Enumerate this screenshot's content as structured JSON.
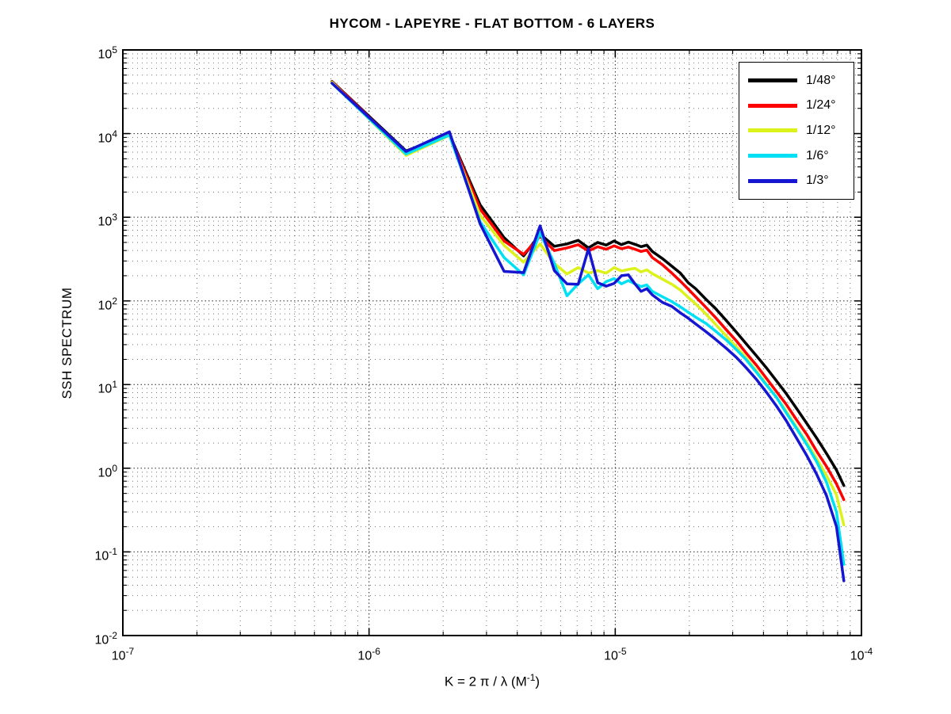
{
  "title": "HYCOM - LAPEYRE - FLAT BOTTOM - 6 LAYERS",
  "chart_data": {
    "type": "line",
    "title": "HYCOM - LAPEYRE - FLAT BOTTOM - 6 LAYERS",
    "xlabel": "K = 2 π / λ  (M⁻¹)",
    "xlabel_parts": {
      "main": "K = 2 π / λ   (M",
      "sup": "-1",
      "close": ")"
    },
    "ylabel": "SSH SPECTRUM",
    "x_scale": "log",
    "y_scale": "log",
    "xlim": [
      1e-07,
      0.0001
    ],
    "ylim": [
      0.01,
      100000
    ],
    "x_tick_exponents": [
      -7,
      -6,
      -5,
      -4
    ],
    "y_tick_exponents": [
      5,
      4,
      3,
      2,
      1,
      0,
      -1,
      -2
    ],
    "grid": "on",
    "legend_position": "top-right",
    "tick_label_base": "10",
    "x": [
      7.07e-07,
      1.414e-06,
      2.121e-06,
      2.828e-06,
      3.536e-06,
      4.243e-06,
      4.95e-06,
      5.657e-06,
      6.364e-06,
      7.07e-06,
      7.78e-06,
      8.49e-06,
      9.19e-06,
      9.9e-06,
      1.06e-05,
      1.131e-05,
      1.202e-05,
      1.273e-05,
      1.344e-05,
      1.414e-05,
      1.556e-05,
      1.697e-05,
      1.838e-05,
      1.98e-05,
      2.121e-05,
      2.333e-05,
      2.546e-05,
      2.828e-05,
      3.111e-05,
      3.394e-05,
      3.748e-05,
      4.101e-05,
      4.525e-05,
      4.95e-05,
      5.445e-05,
      6.01e-05,
      6.576e-05,
      7.212e-05,
      7.919e-05,
      8.484e-05
    ],
    "series": [
      {
        "name": "1/48°",
        "color": "#000000",
        "values": [
          42000,
          6200,
          9800,
          1400,
          570,
          345,
          630,
          450,
          480,
          530,
          430,
          500,
          465,
          520,
          470,
          505,
          475,
          445,
          465,
          390,
          320,
          260,
          215,
          165,
          140,
          105,
          82,
          58,
          42,
          31,
          22,
          16,
          11,
          7.8,
          5.2,
          3.4,
          2.3,
          1.5,
          0.95,
          0.62
        ]
      },
      {
        "name": "1/24°",
        "color": "#ff0000",
        "values": [
          41500,
          6000,
          9700,
          1250,
          520,
          360,
          590,
          400,
          430,
          470,
          395,
          445,
          415,
          455,
          420,
          440,
          415,
          390,
          405,
          330,
          270,
          215,
          172,
          138,
          112,
          84,
          64,
          45,
          33,
          24,
          17,
          12,
          8.2,
          5.8,
          3.8,
          2.5,
          1.6,
          1.05,
          0.65,
          0.42
        ]
      },
      {
        "name": "1/12°",
        "color": "#ddf21b",
        "values": [
          41000,
          5500,
          9500,
          1050,
          460,
          290,
          480,
          280,
          210,
          250,
          215,
          230,
          215,
          250,
          228,
          238,
          245,
          222,
          235,
          212,
          182,
          158,
          135,
          110,
          92,
          70,
          53,
          38,
          28,
          21,
          14.5,
          10.2,
          7,
          4.8,
          3.1,
          2,
          1.3,
          0.82,
          0.48,
          0.21
        ]
      },
      {
        "name": "1/6°",
        "color": "#00e0f5",
        "values": [
          40000,
          5700,
          9600,
          880,
          330,
          205,
          650,
          280,
          115,
          160,
          205,
          140,
          170,
          185,
          160,
          175,
          160,
          148,
          155,
          130,
          112,
          98,
          85,
          73,
          64,
          54,
          44,
          34,
          26,
          20,
          14,
          10,
          7,
          4.6,
          3,
          1.9,
          1.2,
          0.68,
          0.3,
          0.071
        ]
      },
      {
        "name": "1/3°",
        "color": "#1616d2",
        "values": [
          40000,
          6100,
          10500,
          830,
          225,
          218,
          790,
          230,
          160,
          158,
          420,
          165,
          150,
          162,
          200,
          205,
          160,
          130,
          140,
          118,
          96,
          86,
          72,
          62,
          53,
          43,
          35,
          27,
          21,
          16,
          11.5,
          8.2,
          5.5,
          3.7,
          2.3,
          1.4,
          0.85,
          0.47,
          0.2,
          0.045
        ]
      }
    ]
  }
}
